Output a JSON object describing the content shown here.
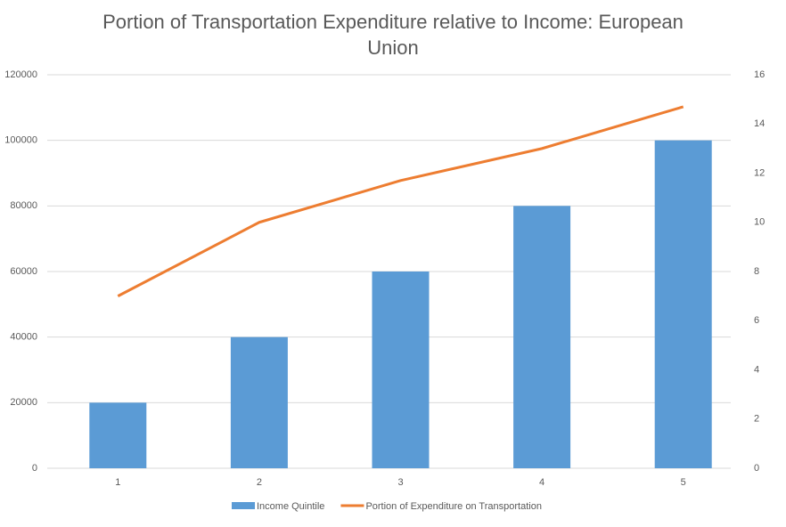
{
  "chart_data": {
    "type": "combo",
    "title": "Portion of Transportation Expenditure relative to Income: European Union",
    "categories": [
      "1",
      "2",
      "3",
      "4",
      "5"
    ],
    "series": [
      {
        "name": "Income Quintile",
        "type": "bar",
        "color": "#5b9bd5",
        "values": [
          20000,
          40000,
          60000,
          80000,
          100000
        ]
      },
      {
        "name": "Portion of Expenditure on Transportation",
        "type": "line",
        "axis": "y2",
        "color": "#ed7d31",
        "values": [
          7,
          10,
          11.7,
          13,
          14.7
        ]
      }
    ],
    "ylim": [
      0,
      120000
    ],
    "yticks": [
      0,
      20000,
      40000,
      60000,
      80000,
      100000,
      120000
    ],
    "y2lim": [
      0,
      16
    ],
    "y2ticks": [
      0,
      2,
      4,
      6,
      8,
      10,
      12,
      14,
      16
    ],
    "grid": true,
    "legend": "bottom"
  }
}
